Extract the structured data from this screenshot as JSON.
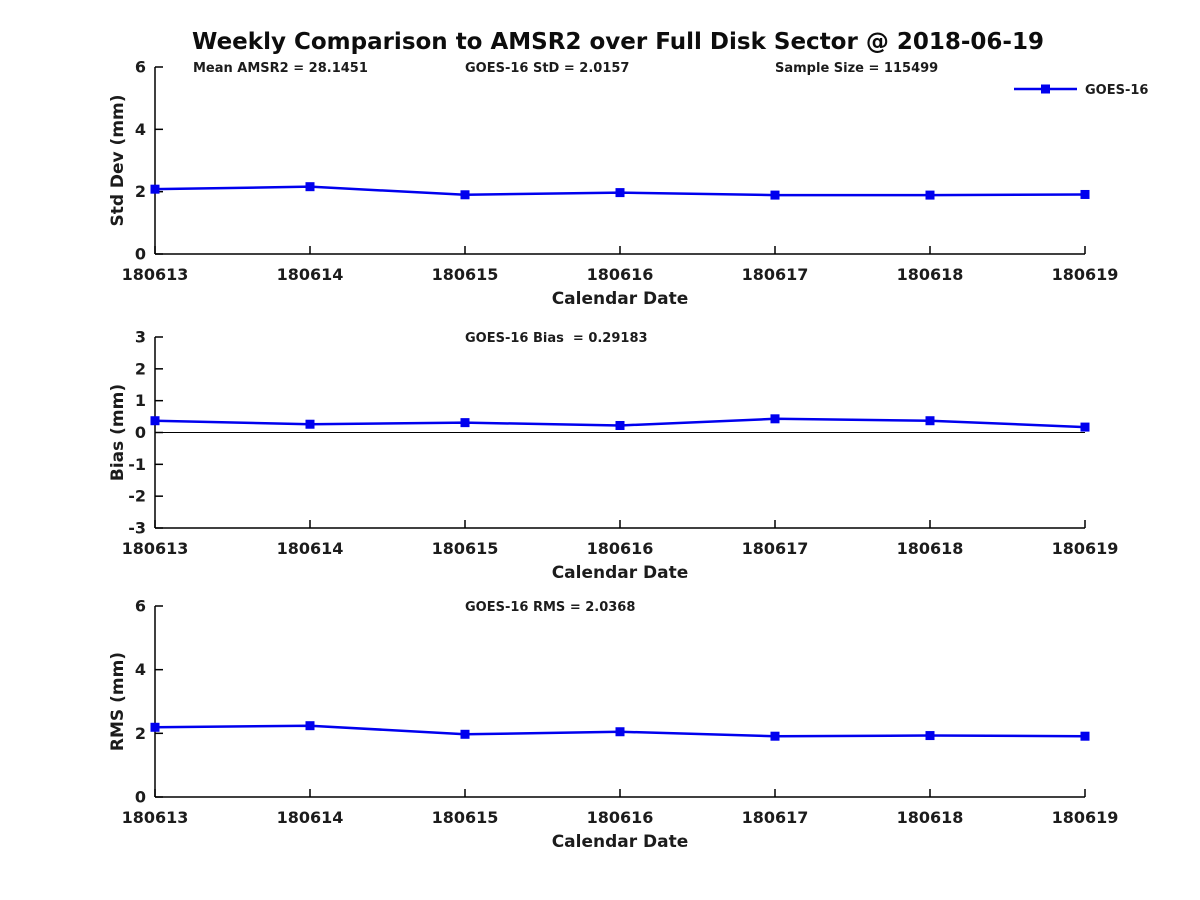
{
  "figure": {
    "title": "Weekly Comparison to AMSR2 over Full Disk Sector @ 2018-06-19",
    "legend": {
      "label": "GOES-16"
    },
    "colors": {
      "line": "#0000ee",
      "axis": "#000000",
      "text": "#1c1c1c",
      "background": "#ffffff"
    }
  },
  "chart_data": [
    {
      "type": "line",
      "id": "std-dev",
      "annotations": [
        "Mean AMSR2 = 28.1451",
        "GOES-16 StD = 2.0157",
        "Sample Size = 115499"
      ],
      "categories": [
        "180613",
        "180614",
        "180615",
        "180616",
        "180617",
        "180618",
        "180619"
      ],
      "series": [
        {
          "name": "GOES-16",
          "values": [
            2.08,
            2.16,
            1.9,
            1.97,
            1.89,
            1.89,
            1.91
          ]
        }
      ],
      "xlabel": "Calendar Date",
      "ylabel": "Std Dev (mm)",
      "ylim": [
        0,
        6
      ],
      "yticks": [
        0,
        2,
        4,
        6
      ],
      "zero_line": false,
      "grid": false,
      "legend_position": "top-right",
      "marker": "square"
    },
    {
      "type": "line",
      "id": "bias",
      "annotations": [
        "GOES-16 Bias  = 0.29183"
      ],
      "categories": [
        "180613",
        "180614",
        "180615",
        "180616",
        "180617",
        "180618",
        "180619"
      ],
      "series": [
        {
          "name": "GOES-16",
          "values": [
            0.37,
            0.26,
            0.31,
            0.22,
            0.43,
            0.37,
            0.17
          ]
        }
      ],
      "xlabel": "Calendar Date",
      "ylabel": "Bias (mm)",
      "ylim": [
        -3,
        3
      ],
      "yticks": [
        -3,
        -2,
        -1,
        0,
        1,
        2,
        3
      ],
      "zero_line": true,
      "grid": false,
      "legend_position": "none",
      "marker": "square"
    },
    {
      "type": "line",
      "id": "rms",
      "annotations": [
        "GOES-16 RMS = 2.0368"
      ],
      "categories": [
        "180613",
        "180614",
        "180615",
        "180616",
        "180617",
        "180618",
        "180619"
      ],
      "series": [
        {
          "name": "GOES-16",
          "values": [
            2.19,
            2.24,
            1.97,
            2.05,
            1.91,
            1.93,
            1.91
          ]
        }
      ],
      "xlabel": "Calendar Date",
      "ylabel": "RMS (mm)",
      "ylim": [
        0,
        6
      ],
      "yticks": [
        0,
        2,
        4,
        6
      ],
      "zero_line": false,
      "grid": false,
      "legend_position": "none",
      "marker": "square"
    }
  ]
}
